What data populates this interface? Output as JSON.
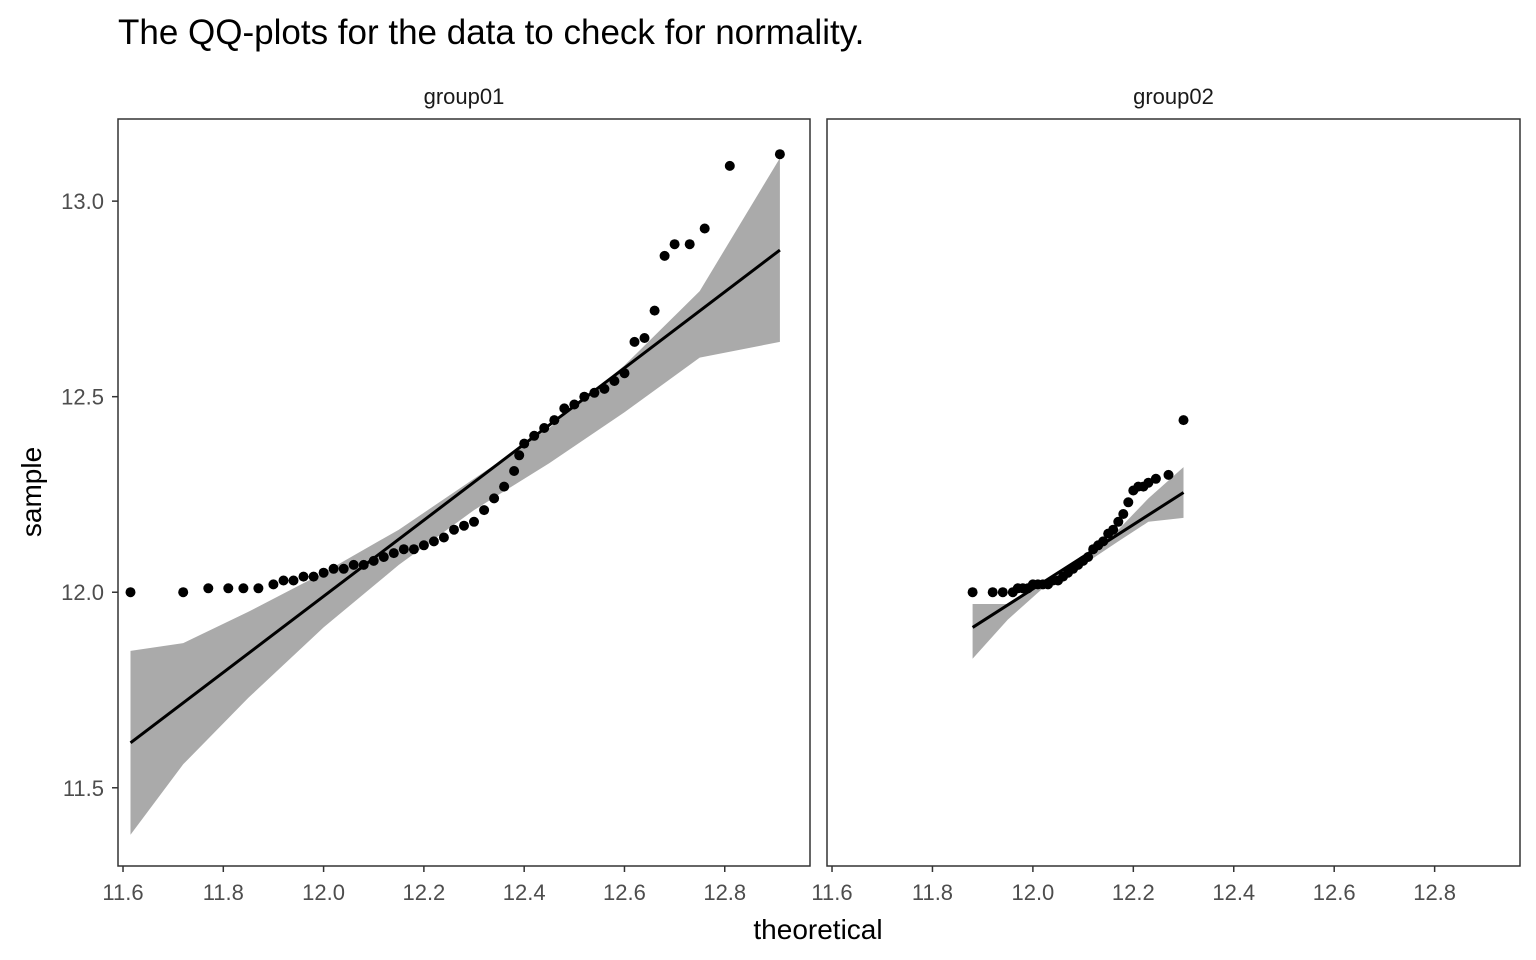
{
  "chart_data": {
    "type": "scatter",
    "title": "The QQ-plots for the data to check for normality.",
    "xlabel": "theoretical",
    "ylabel": "sample",
    "xlim": [
      11.59,
      12.97
    ],
    "ylim": [
      11.3,
      13.21
    ],
    "x_ticks": [
      11.6,
      11.8,
      12.0,
      12.2,
      12.4,
      12.6,
      12.8
    ],
    "x_tick_labels": [
      "11.6",
      "11.8",
      "12.0",
      "12.2",
      "12.4",
      "12.6",
      "12.8"
    ],
    "y_ticks": [
      11.5,
      12.0,
      12.5,
      13.0
    ],
    "y_tick_labels": [
      "11.5",
      "12.0",
      "12.5",
      "13.0"
    ],
    "grid": false,
    "legend": "none",
    "colors": {
      "points": "#000000",
      "line": "#000000",
      "band": "#aaaaaa",
      "border": "#333333"
    },
    "facets": [
      {
        "name": "group01",
        "points": {
          "x": [
            11.615,
            11.72,
            11.77,
            11.81,
            11.84,
            11.87,
            11.9,
            11.92,
            11.94,
            11.96,
            11.98,
            12.0,
            12.02,
            12.04,
            12.06,
            12.08,
            12.1,
            12.12,
            12.14,
            12.16,
            12.18,
            12.2,
            12.22,
            12.24,
            12.26,
            12.28,
            12.3,
            12.32,
            12.34,
            12.36,
            12.38,
            12.39,
            12.4,
            12.42,
            12.44,
            12.46,
            12.48,
            12.5,
            12.52,
            12.54,
            12.56,
            12.58,
            12.6,
            12.62,
            12.64,
            12.66,
            12.68,
            12.7,
            12.73,
            12.76,
            12.81,
            12.91
          ],
          "y": [
            12.0,
            12.0,
            12.01,
            12.01,
            12.01,
            12.01,
            12.02,
            12.03,
            12.03,
            12.04,
            12.04,
            12.05,
            12.06,
            12.06,
            12.07,
            12.07,
            12.08,
            12.09,
            12.1,
            12.11,
            12.11,
            12.12,
            12.13,
            12.14,
            12.16,
            12.17,
            12.18,
            12.21,
            12.24,
            12.27,
            12.31,
            12.35,
            12.38,
            12.4,
            12.42,
            12.44,
            12.47,
            12.48,
            12.5,
            12.51,
            12.52,
            12.54,
            12.56,
            12.64,
            12.65,
            12.72,
            12.86,
            12.89,
            12.89,
            12.93,
            13.09,
            13.12
          ]
        },
        "line": {
          "x": [
            11.615,
            12.91
          ],
          "y": [
            11.615,
            12.875
          ]
        },
        "band": {
          "x": [
            11.615,
            11.72,
            11.85,
            12.0,
            12.15,
            12.3,
            12.45,
            12.6,
            12.75,
            12.91
          ],
          "lower": [
            11.38,
            11.56,
            11.73,
            11.91,
            12.07,
            12.21,
            12.33,
            12.46,
            12.6,
            12.64
          ],
          "upper": [
            11.85,
            11.87,
            11.95,
            12.05,
            12.16,
            12.29,
            12.42,
            12.58,
            12.77,
            13.11
          ]
        }
      },
      {
        "name": "group02",
        "points": {
          "x": [
            11.88,
            11.92,
            11.94,
            11.96,
            11.97,
            11.98,
            11.99,
            12.0,
            12.01,
            12.02,
            12.03,
            12.04,
            12.05,
            12.06,
            12.07,
            12.08,
            12.09,
            12.1,
            12.11,
            12.12,
            12.13,
            12.14,
            12.15,
            12.16,
            12.17,
            12.18,
            12.19,
            12.2,
            12.21,
            12.22,
            12.23,
            12.245,
            12.27,
            12.3
          ],
          "y": [
            12.0,
            12.0,
            12.0,
            12.0,
            12.01,
            12.01,
            12.01,
            12.02,
            12.02,
            12.02,
            12.02,
            12.03,
            12.03,
            12.04,
            12.05,
            12.06,
            12.07,
            12.08,
            12.09,
            12.11,
            12.12,
            12.13,
            12.15,
            12.16,
            12.18,
            12.2,
            12.23,
            12.26,
            12.27,
            12.27,
            12.28,
            12.29,
            12.3,
            12.44
          ]
        },
        "line": {
          "x": [
            11.88,
            12.3
          ],
          "y": [
            11.91,
            12.255
          ]
        },
        "band": {
          "x": [
            11.88,
            11.95,
            12.02,
            12.1,
            12.17,
            12.23,
            12.3
          ],
          "lower": [
            11.83,
            11.93,
            12.01,
            12.07,
            12.13,
            12.18,
            12.19
          ],
          "upper": [
            11.97,
            11.97,
            12.02,
            12.08,
            12.16,
            12.24,
            12.32
          ]
        }
      }
    ]
  }
}
